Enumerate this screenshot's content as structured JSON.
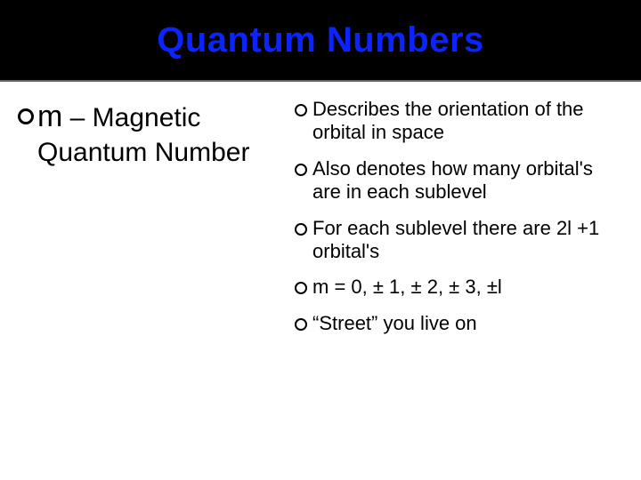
{
  "title": "Quantum Numbers",
  "colors": {
    "header_bg": "#000000",
    "title_color": "#0b24fb",
    "body_bg": "#ffffff",
    "text_color": "#000000"
  },
  "left": {
    "m": "m",
    "rest": " – Magnetic Quantum Number"
  },
  "right": {
    "b1": "Describes the orientation of the orbital in space",
    "b2": "Also denotes how many orbital's are in each sublevel",
    "b3": "For each sublevel there are 2l +1 orbital's",
    "b4": "m = 0, ± 1, ± 2, ± 3, ±l",
    "b5": "“Street” you live on"
  }
}
